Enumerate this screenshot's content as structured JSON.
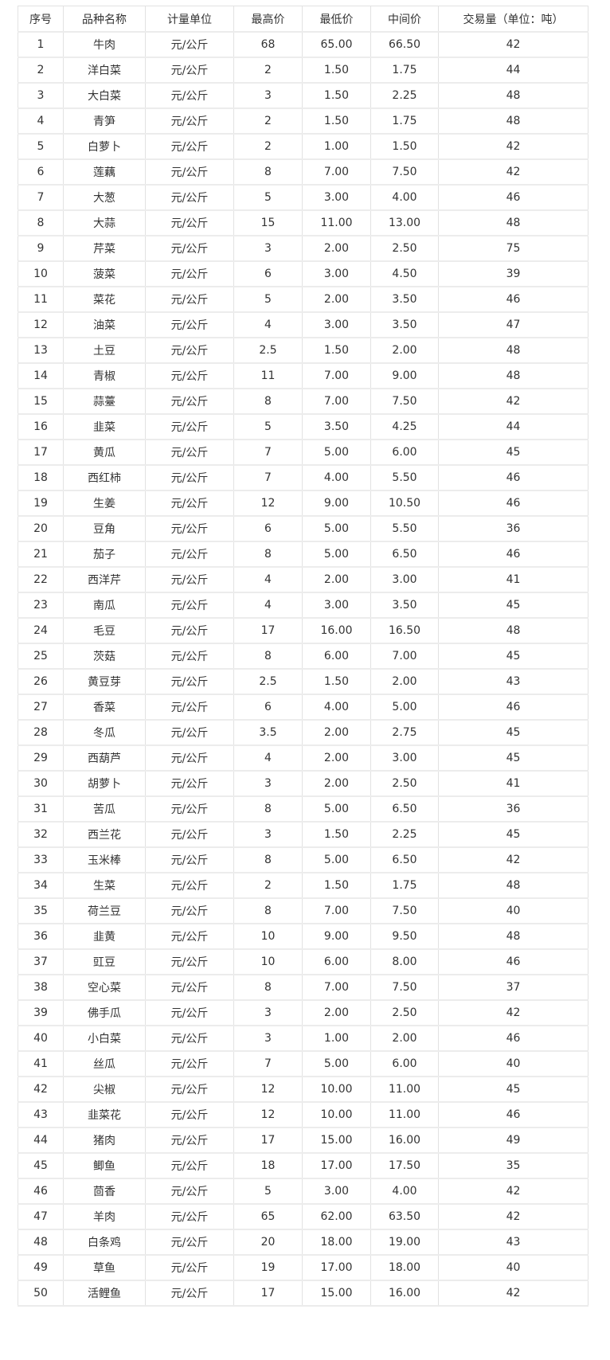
{
  "table": {
    "headers": [
      "序号",
      "品种名称",
      "计量单位",
      "最高价",
      "最低价",
      "中间价",
      "交易量（单位：吨）"
    ],
    "rows": [
      [
        "1",
        "牛肉",
        "元/公斤",
        "68",
        "65.00",
        "66.50",
        "42"
      ],
      [
        "2",
        "洋白菜",
        "元/公斤",
        "2",
        "1.50",
        "1.75",
        "44"
      ],
      [
        "3",
        "大白菜",
        "元/公斤",
        "3",
        "1.50",
        "2.25",
        "48"
      ],
      [
        "4",
        "青笋",
        "元/公斤",
        "2",
        "1.50",
        "1.75",
        "48"
      ],
      [
        "5",
        "白萝卜",
        "元/公斤",
        "2",
        "1.00",
        "1.50",
        "42"
      ],
      [
        "6",
        "莲藕",
        "元/公斤",
        "8",
        "7.00",
        "7.50",
        "42"
      ],
      [
        "7",
        "大葱",
        "元/公斤",
        "5",
        "3.00",
        "4.00",
        "46"
      ],
      [
        "8",
        "大蒜",
        "元/公斤",
        "15",
        "11.00",
        "13.00",
        "48"
      ],
      [
        "9",
        "芹菜",
        "元/公斤",
        "3",
        "2.00",
        "2.50",
        "75"
      ],
      [
        "10",
        "菠菜",
        "元/公斤",
        "6",
        "3.00",
        "4.50",
        "39"
      ],
      [
        "11",
        "菜花",
        "元/公斤",
        "5",
        "2.00",
        "3.50",
        "46"
      ],
      [
        "12",
        "油菜",
        "元/公斤",
        "4",
        "3.00",
        "3.50",
        "47"
      ],
      [
        "13",
        "土豆",
        "元/公斤",
        "2.5",
        "1.50",
        "2.00",
        "48"
      ],
      [
        "14",
        "青椒",
        "元/公斤",
        "11",
        "7.00",
        "9.00",
        "48"
      ],
      [
        "15",
        "蒜薹",
        "元/公斤",
        "8",
        "7.00",
        "7.50",
        "42"
      ],
      [
        "16",
        "韭菜",
        "元/公斤",
        "5",
        "3.50",
        "4.25",
        "44"
      ],
      [
        "17",
        "黄瓜",
        "元/公斤",
        "7",
        "5.00",
        "6.00",
        "45"
      ],
      [
        "18",
        "西红柿",
        "元/公斤",
        "7",
        "4.00",
        "5.50",
        "46"
      ],
      [
        "19",
        "生姜",
        "元/公斤",
        "12",
        "9.00",
        "10.50",
        "46"
      ],
      [
        "20",
        "豆角",
        "元/公斤",
        "6",
        "5.00",
        "5.50",
        "36"
      ],
      [
        "21",
        "茄子",
        "元/公斤",
        "8",
        "5.00",
        "6.50",
        "46"
      ],
      [
        "22",
        "西洋芹",
        "元/公斤",
        "4",
        "2.00",
        "3.00",
        "41"
      ],
      [
        "23",
        "南瓜",
        "元/公斤",
        "4",
        "3.00",
        "3.50",
        "45"
      ],
      [
        "24",
        "毛豆",
        "元/公斤",
        "17",
        "16.00",
        "16.50",
        "48"
      ],
      [
        "25",
        "茨菇",
        "元/公斤",
        "8",
        "6.00",
        "7.00",
        "45"
      ],
      [
        "26",
        "黄豆芽",
        "元/公斤",
        "2.5",
        "1.50",
        "2.00",
        "43"
      ],
      [
        "27",
        "香菜",
        "元/公斤",
        "6",
        "4.00",
        "5.00",
        "46"
      ],
      [
        "28",
        "冬瓜",
        "元/公斤",
        "3.5",
        "2.00",
        "2.75",
        "45"
      ],
      [
        "29",
        "西葫芦",
        "元/公斤",
        "4",
        "2.00",
        "3.00",
        "45"
      ],
      [
        "30",
        "胡萝卜",
        "元/公斤",
        "3",
        "2.00",
        "2.50",
        "41"
      ],
      [
        "31",
        "苦瓜",
        "元/公斤",
        "8",
        "5.00",
        "6.50",
        "36"
      ],
      [
        "32",
        "西兰花",
        "元/公斤",
        "3",
        "1.50",
        "2.25",
        "45"
      ],
      [
        "33",
        "玉米棒",
        "元/公斤",
        "8",
        "5.00",
        "6.50",
        "42"
      ],
      [
        "34",
        "生菜",
        "元/公斤",
        "2",
        "1.50",
        "1.75",
        "48"
      ],
      [
        "35",
        "荷兰豆",
        "元/公斤",
        "8",
        "7.00",
        "7.50",
        "40"
      ],
      [
        "36",
        "韭黄",
        "元/公斤",
        "10",
        "9.00",
        "9.50",
        "48"
      ],
      [
        "37",
        "豇豆",
        "元/公斤",
        "10",
        "6.00",
        "8.00",
        "46"
      ],
      [
        "38",
        "空心菜",
        "元/公斤",
        "8",
        "7.00",
        "7.50",
        "37"
      ],
      [
        "39",
        "佛手瓜",
        "元/公斤",
        "3",
        "2.00",
        "2.50",
        "42"
      ],
      [
        "40",
        "小白菜",
        "元/公斤",
        "3",
        "1.00",
        "2.00",
        "46"
      ],
      [
        "41",
        "丝瓜",
        "元/公斤",
        "7",
        "5.00",
        "6.00",
        "40"
      ],
      [
        "42",
        "尖椒",
        "元/公斤",
        "12",
        "10.00",
        "11.00",
        "45"
      ],
      [
        "43",
        "韭菜花",
        "元/公斤",
        "12",
        "10.00",
        "11.00",
        "46"
      ],
      [
        "44",
        "猪肉",
        "元/公斤",
        "17",
        "15.00",
        "16.00",
        "49"
      ],
      [
        "45",
        "鲫鱼",
        "元/公斤",
        "18",
        "17.00",
        "17.50",
        "35"
      ],
      [
        "46",
        "茴香",
        "元/公斤",
        "5",
        "3.00",
        "4.00",
        "42"
      ],
      [
        "47",
        "羊肉",
        "元/公斤",
        "65",
        "62.00",
        "63.50",
        "42"
      ],
      [
        "48",
        "白条鸡",
        "元/公斤",
        "20",
        "18.00",
        "19.00",
        "43"
      ],
      [
        "49",
        "草鱼",
        "元/公斤",
        "19",
        "17.00",
        "18.00",
        "40"
      ],
      [
        "50",
        "活鲤鱼",
        "元/公斤",
        "17",
        "15.00",
        "16.00",
        "42"
      ]
    ]
  }
}
